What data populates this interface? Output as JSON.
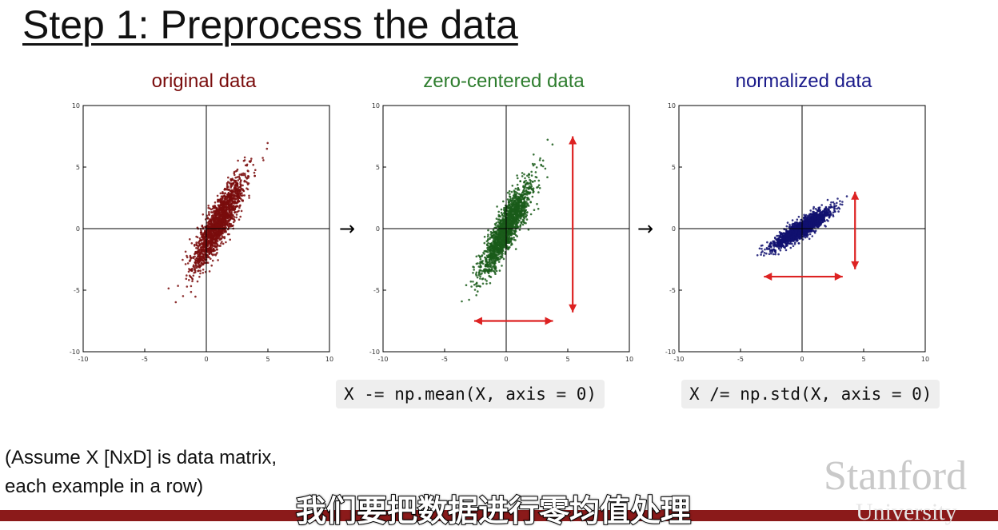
{
  "slide": {
    "title": "Step 1: Preprocess the data",
    "note_line1": "(Assume X [NxD] is data matrix,",
    "note_line2": "each example in a row)",
    "subtitle": "我们要把数据进行零均值处理",
    "logo_text": "Stanford",
    "logo_sub": "University",
    "arrow_glyph": "→",
    "code_center": "X -= np.mean(X, axis = 0)",
    "code_normalize": "X /= np.std(X, axis = 0)"
  },
  "chart_data": [
    {
      "type": "scatter",
      "title": "original data",
      "color": "#7a0d0d",
      "xlim": [
        -10,
        10
      ],
      "ylim": [
        -10,
        10
      ],
      "xticks": [
        -10,
        -5,
        0,
        5,
        10
      ],
      "yticks": [
        10,
        5,
        0,
        -5,
        -10
      ],
      "distribution": {
        "mean_x": 1.0,
        "mean_y": 0.5,
        "std_major": 2.1,
        "std_minor": 0.45,
        "angle_deg": 63,
        "n": 1800
      },
      "annotations": []
    },
    {
      "type": "scatter",
      "title": "zero-centered data",
      "color": "#1a5c1a",
      "xlim": [
        -10,
        10
      ],
      "ylim": [
        -10,
        10
      ],
      "xticks": [
        -10,
        -5,
        0,
        5,
        10
      ],
      "yticks": [
        10,
        5,
        0,
        -5,
        -10
      ],
      "distribution": {
        "mean_x": 0.0,
        "mean_y": 0.0,
        "std_major": 2.1,
        "std_minor": 0.45,
        "angle_deg": 63,
        "n": 1800
      },
      "annotations": [
        {
          "kind": "double-arrow",
          "color": "#dd2222",
          "x1": 5.4,
          "y1": 7.5,
          "x2": 5.4,
          "y2": -6.8
        },
        {
          "kind": "double-arrow",
          "color": "#dd2222",
          "x1": -2.6,
          "y1": -7.5,
          "x2": 3.8,
          "y2": -7.5
        }
      ]
    },
    {
      "type": "scatter",
      "title": "normalized data",
      "color": "#101070",
      "xlim": [
        -10,
        10
      ],
      "ylim": [
        -10,
        10
      ],
      "xticks": [
        -10,
        -5,
        0,
        5,
        10
      ],
      "yticks": [
        10,
        5,
        0,
        -5,
        -10
      ],
      "distribution": {
        "mean_x": 0.0,
        "mean_y": 0.0,
        "std_major": 1.35,
        "std_minor": 0.3,
        "angle_deg": 33,
        "n": 1800
      },
      "annotations": [
        {
          "kind": "double-arrow",
          "color": "#dd2222",
          "x1": 4.3,
          "y1": 3.0,
          "x2": 4.3,
          "y2": -3.3
        },
        {
          "kind": "double-arrow",
          "color": "#dd2222",
          "x1": -3.1,
          "y1": -3.9,
          "x2": 3.3,
          "y2": -3.9
        }
      ]
    }
  ]
}
